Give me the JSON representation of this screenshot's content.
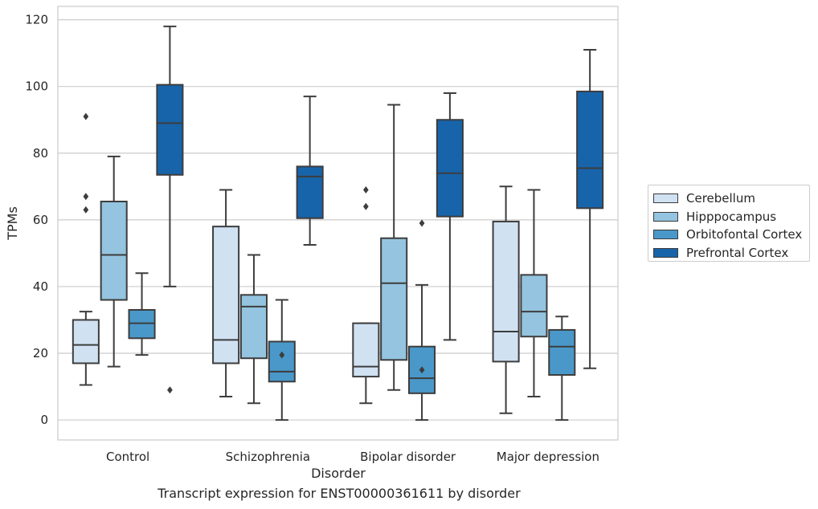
{
  "caption": "Transcript expression for ENST00000361611 by disorder",
  "chart_data": {
    "type": "box",
    "title": "",
    "xlabel": "Disorder",
    "ylabel": "TPMs",
    "ylim": [
      -6,
      124
    ],
    "yticks": [
      0,
      20,
      40,
      60,
      80,
      100,
      120
    ],
    "grid": "horizontal",
    "legend_position": "right",
    "categories": [
      "Control",
      "Schizophrenia",
      "Bipolar disorder",
      "Major depression"
    ],
    "series": [
      {
        "name": "Cerebellum",
        "color": "#d0e1f2",
        "boxes": [
          {
            "whisker_low": 10.5,
            "q1": 17,
            "median": 22.5,
            "q3": 30,
            "whisker_high": 32.5,
            "outliers": [
              91,
              67,
              63
            ]
          },
          {
            "whisker_low": 7,
            "q1": 17,
            "median": 24,
            "q3": 58,
            "whisker_high": 69,
            "outliers": []
          },
          {
            "whisker_low": 5,
            "q1": 13,
            "median": 16,
            "q3": 29,
            "whisker_high": 29,
            "outliers": [
              69,
              64
            ]
          },
          {
            "whisker_low": 2,
            "q1": 17.5,
            "median": 26.5,
            "q3": 59.5,
            "whisker_high": 70,
            "outliers": []
          }
        ]
      },
      {
        "name": "Hipppocampus",
        "color": "#94c4df",
        "boxes": [
          {
            "whisker_low": 16,
            "q1": 36,
            "median": 49.5,
            "q3": 65.5,
            "whisker_high": 79,
            "outliers": []
          },
          {
            "whisker_low": 5,
            "q1": 18.5,
            "median": 34,
            "q3": 37.5,
            "whisker_high": 49.5,
            "outliers": []
          },
          {
            "whisker_low": 9,
            "q1": 18,
            "median": 41,
            "q3": 54.5,
            "whisker_high": 94.5,
            "outliers": []
          },
          {
            "whisker_low": 7,
            "q1": 25,
            "median": 32.5,
            "q3": 43.5,
            "whisker_high": 69,
            "outliers": []
          }
        ]
      },
      {
        "name": "Orbitofontal Cortex",
        "color": "#4a98c9",
        "boxes": [
          {
            "whisker_low": 19.5,
            "q1": 24.5,
            "median": 29,
            "q3": 33,
            "whisker_high": 44,
            "outliers": []
          },
          {
            "whisker_low": 0,
            "q1": 11.5,
            "median": 14.5,
            "q3": 23.5,
            "whisker_high": 36,
            "outliers": [
              19.5
            ]
          },
          {
            "whisker_low": 0,
            "q1": 8,
            "median": 12.5,
            "q3": 22,
            "whisker_high": 40.5,
            "outliers": [
              59,
              15
            ]
          },
          {
            "whisker_low": 0,
            "q1": 13.5,
            "median": 22,
            "q3": 27,
            "whisker_high": 31,
            "outliers": []
          }
        ]
      },
      {
        "name": "Prefrontal Cortex",
        "color": "#1764ab",
        "boxes": [
          {
            "whisker_low": 40,
            "q1": 73.5,
            "median": 89,
            "q3": 100.5,
            "whisker_high": 118,
            "outliers": [
              9
            ]
          },
          {
            "whisker_low": 52.5,
            "q1": 60.5,
            "median": 73,
            "q3": 76,
            "whisker_high": 97,
            "outliers": []
          },
          {
            "whisker_low": 24,
            "q1": 61,
            "median": 74,
            "q3": 90,
            "whisker_high": 98,
            "outliers": []
          },
          {
            "whisker_low": 15.5,
            "q1": 63.5,
            "median": 75.5,
            "q3": 98.5,
            "whisker_high": 111,
            "outliers": []
          }
        ]
      }
    ]
  }
}
